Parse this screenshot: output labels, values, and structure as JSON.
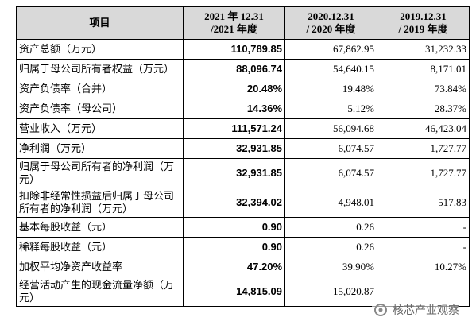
{
  "table": {
    "header": [
      [
        "项目"
      ],
      [
        "2021 年 12.31",
        "/2021 年度"
      ],
      [
        "2020.12.31",
        "/ 2020 年度"
      ],
      [
        "2019.12.31",
        "/ 2019 年度"
      ]
    ],
    "rows": [
      [
        "资产总额（万元）",
        "110,789.85",
        "67,862.95",
        "31,232.33"
      ],
      [
        "归属于母公司所有者权益（万元）",
        "88,096.74",
        "54,640.15",
        "8,171.01"
      ],
      [
        "资产负债率（合并）",
        "20.48%",
        "19.48%",
        "73.84%"
      ],
      [
        "资产负债率（母公司）",
        "14.36%",
        "5.12%",
        "28.37%"
      ],
      [
        "营业收入（万元）",
        "111,571.24",
        "56,094.68",
        "46,423.04"
      ],
      [
        "净利润（万元）",
        "32,931.85",
        "6,074.57",
        "1,727.77"
      ],
      [
        "归属于母公司所有者的净利润（万元）",
        "32,931.85",
        "6,074.57",
        "1,727.77"
      ],
      [
        "扣除非经常性损益后归属于母公司所有者的净利润（万元）",
        "32,394.02",
        "4,948.01",
        "517.83"
      ],
      [
        "基本每股收益（元）",
        "0.90",
        "0.26",
        "-"
      ],
      [
        "稀释每股收益（元）",
        "0.90",
        "0.26",
        "-"
      ],
      [
        "加权平均净资产收益率",
        "47.20%",
        "39.90%",
        "10.27%"
      ],
      [
        "经营活动产生的现金流量净额（万元）",
        "14,815.09",
        "15,020.87",
        ""
      ]
    ]
  },
  "watermark": "核芯产业观察"
}
